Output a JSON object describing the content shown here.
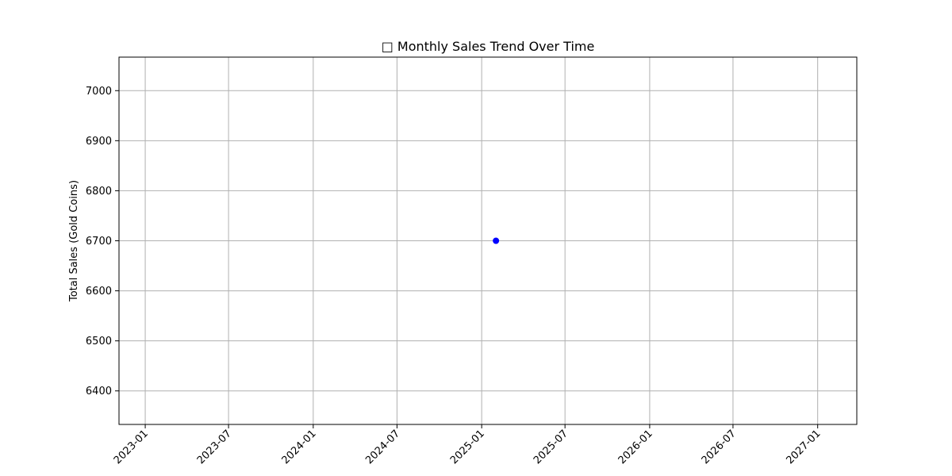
{
  "chart_data": {
    "type": "line",
    "title": "□ Monthly Sales Trend Over Time",
    "xlabel": "",
    "ylabel": "Total Sales (Gold Coins)",
    "x_ticks": [
      "2023-01",
      "2023-07",
      "2024-01",
      "2024-07",
      "2025-01",
      "2025-07",
      "2026-01",
      "2026-07",
      "2027-01"
    ],
    "y_ticks": [
      6400,
      6500,
      6600,
      6700,
      6800,
      6900,
      7000
    ],
    "xlim": [
      "2022-11-05",
      "2027-03-27"
    ],
    "ylim": [
      6333,
      7067
    ],
    "grid": true,
    "series": [
      {
        "marker": "circle",
        "color": "#0000ff",
        "points": [
          {
            "x": "2025-02-01",
            "y": 6700
          }
        ]
      }
    ]
  }
}
